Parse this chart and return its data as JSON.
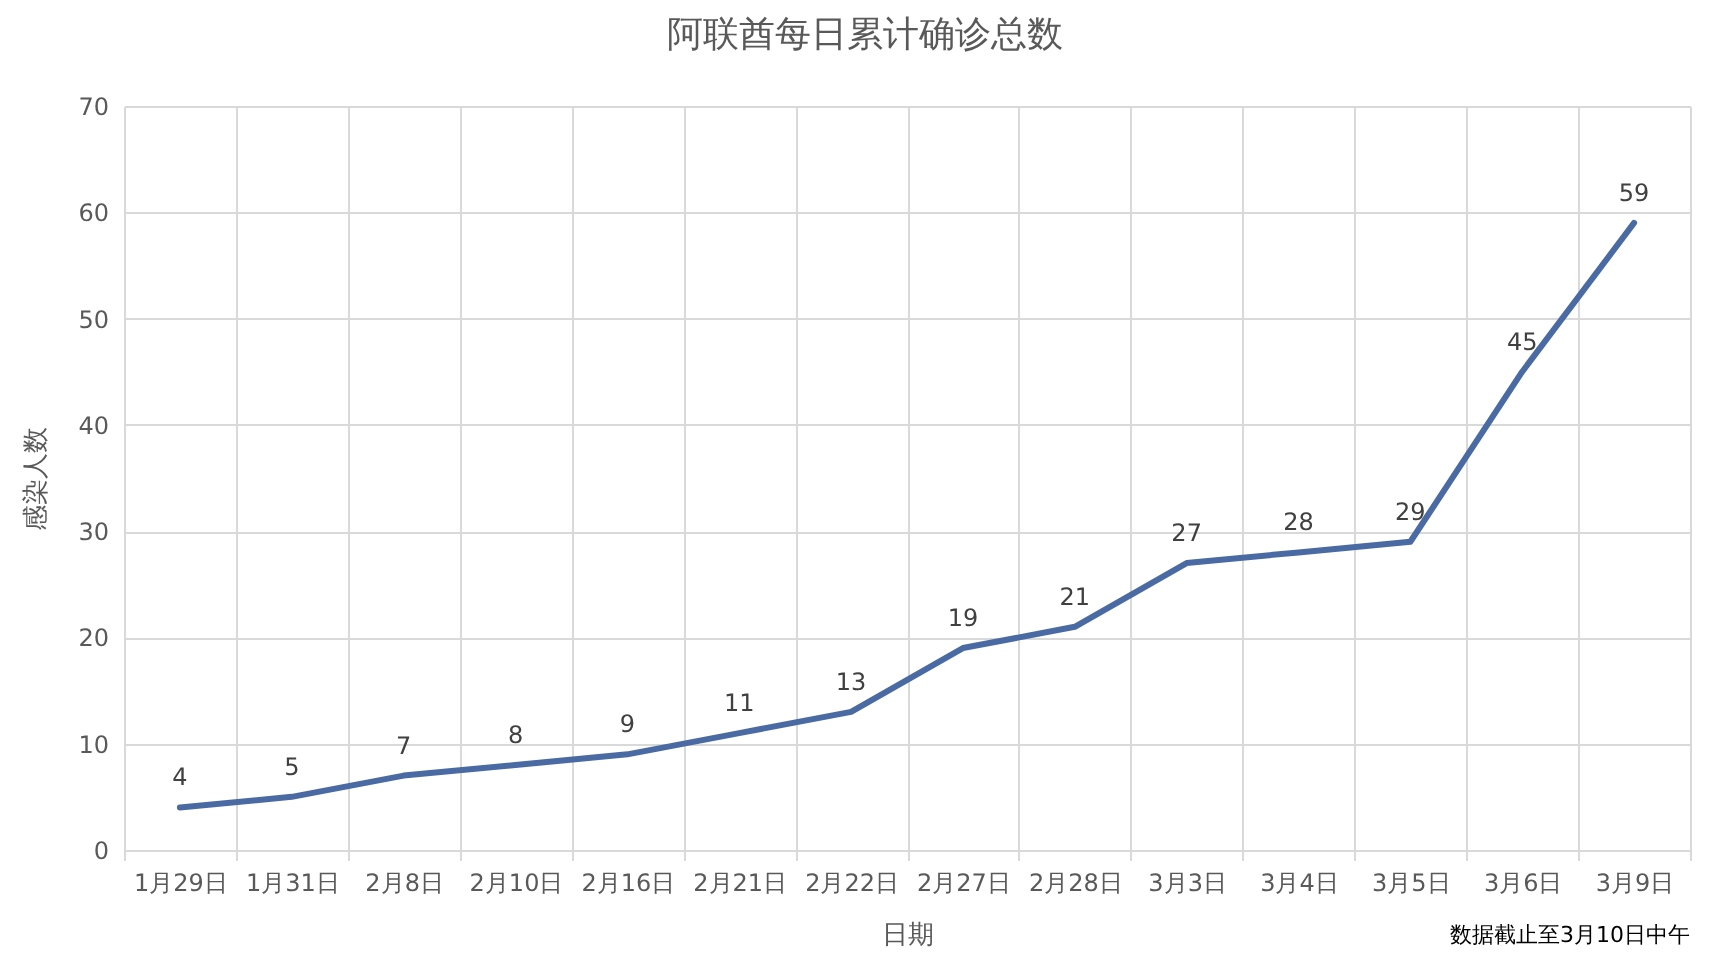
{
  "chart_data": {
    "type": "line",
    "title": "阿联酋每日累计确诊总数",
    "xlabel": "日期",
    "ylabel": "感染人数",
    "categories": [
      "1月29日",
      "1月31日",
      "2月8日",
      "2月10日",
      "2月16日",
      "2月21日",
      "2月22日",
      "2月27日",
      "2月28日",
      "3月3日",
      "3月4日",
      "3月5日",
      "3月6日",
      "3月9日"
    ],
    "values": [
      4,
      5,
      7,
      8,
      9,
      11,
      13,
      19,
      21,
      27,
      28,
      29,
      45,
      59
    ],
    "color": "#4a6aa3",
    "ylim": [
      0,
      70
    ],
    "yticks": [
      0,
      10,
      20,
      30,
      40,
      50,
      60,
      70
    ],
    "grid": true,
    "data_labels": true,
    "annotations": [
      "数据截止至3月10日中午"
    ]
  }
}
